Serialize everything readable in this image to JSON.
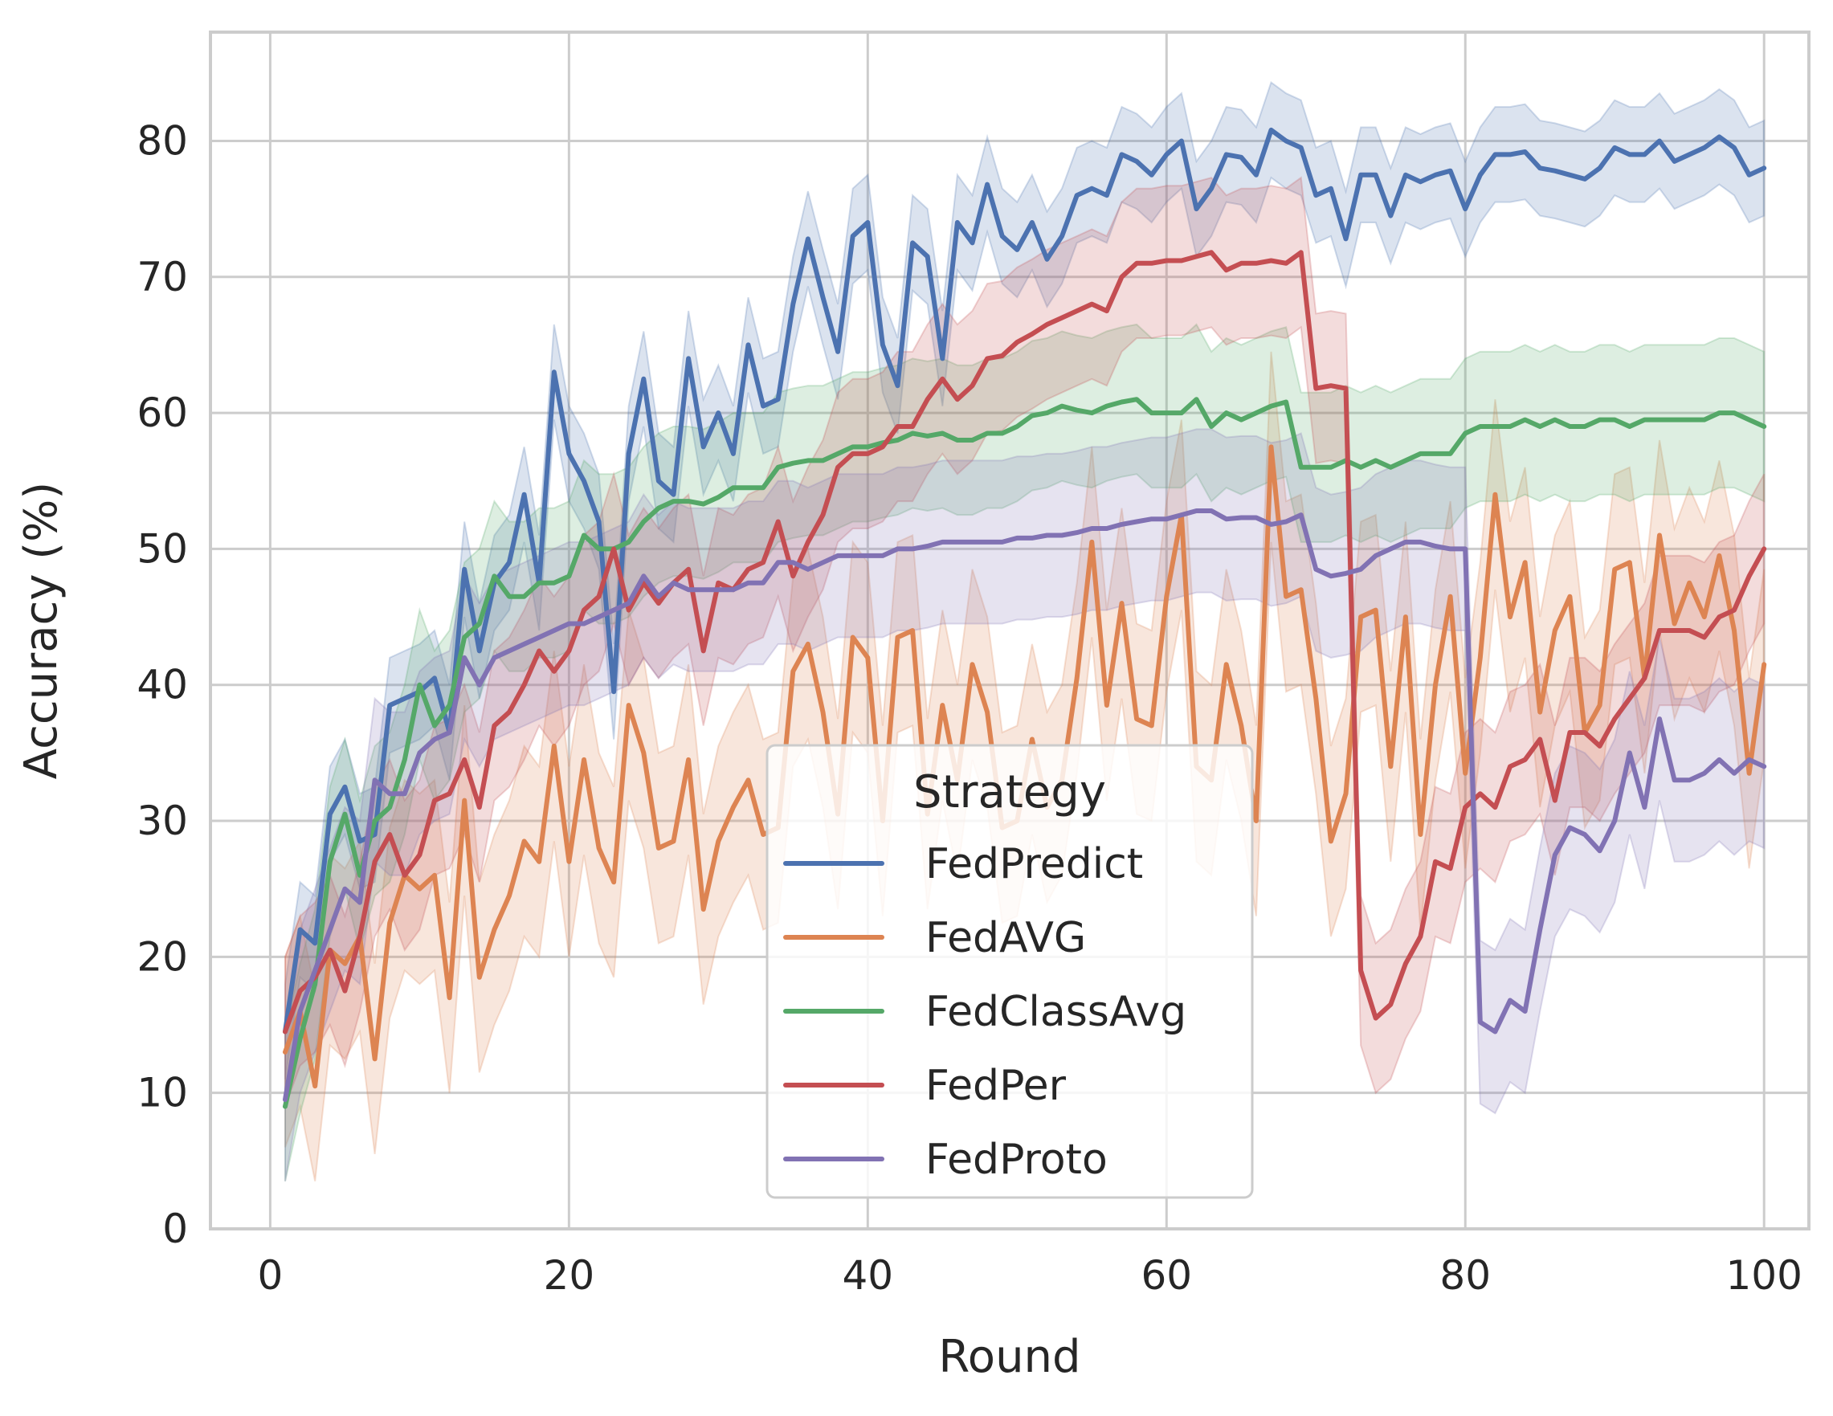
{
  "chart_data": {
    "type": "line",
    "title": "",
    "xlabel": "Round",
    "ylabel": "Accuracy (%)",
    "xlim": [
      -4,
      103
    ],
    "ylim": [
      0,
      88
    ],
    "xticks": [
      0,
      20,
      40,
      60,
      80,
      100
    ],
    "yticks": [
      0,
      10,
      20,
      30,
      40,
      50,
      60,
      70,
      80
    ],
    "grid": true,
    "legend": {
      "title": "Strategy",
      "placement": "lower-center"
    },
    "x": [
      1,
      2,
      3,
      4,
      5,
      6,
      7,
      8,
      9,
      10,
      11,
      12,
      13,
      14,
      15,
      16,
      17,
      18,
      19,
      20,
      21,
      22,
      23,
      24,
      25,
      26,
      27,
      28,
      29,
      30,
      31,
      32,
      33,
      34,
      35,
      36,
      37,
      38,
      39,
      40,
      41,
      42,
      43,
      44,
      45,
      46,
      47,
      48,
      49,
      50,
      51,
      52,
      53,
      54,
      55,
      56,
      57,
      58,
      59,
      60,
      61,
      62,
      63,
      64,
      65,
      66,
      67,
      68,
      69,
      70,
      71,
      72,
      73,
      74,
      75,
      76,
      77,
      78,
      79,
      80,
      81,
      82,
      83,
      84,
      85,
      86,
      87,
      88,
      89,
      90,
      91,
      92,
      93,
      94,
      95,
      96,
      97,
      98,
      99,
      100
    ],
    "series": [
      {
        "name": "FedPredict",
        "color": "#4c72b0",
        "values": [
          14.5,
          22,
          21,
          30.5,
          32.5,
          28.5,
          29,
          38.5,
          39,
          39.5,
          40.5,
          36.5,
          48.5,
          42.5,
          47.5,
          49,
          54,
          47.5,
          63,
          57,
          55,
          52,
          39.5,
          57,
          62.5,
          55,
          54,
          64,
          57.5,
          60,
          57,
          65,
          60.5,
          61,
          68,
          72.8,
          68.5,
          64.5,
          73,
          74,
          65,
          62,
          72.5,
          71.5,
          64,
          74,
          72.5,
          76.8,
          73,
          72,
          74,
          71.3,
          73,
          76,
          76.5,
          76,
          79,
          78.5,
          77.5,
          79,
          80,
          75,
          76.5,
          79,
          78.8,
          77.5,
          80.8,
          80,
          79.5,
          76,
          76.5,
          72.8,
          77.5,
          77.5,
          74.5,
          77.5,
          77,
          77.5,
          77.8,
          75,
          77.5,
          79,
          79,
          79.2,
          78,
          77.8,
          77.5,
          77.2,
          78,
          79.5,
          79,
          79,
          80,
          78.5,
          79,
          79.5,
          80.3,
          79.5,
          77.5,
          78
        ],
        "ci_halfwidth": 3.5
      },
      {
        "name": "FedAVG",
        "color": "#dd8452",
        "values": [
          13,
          16,
          10.5,
          20.5,
          19.5,
          21.5,
          12.5,
          22.5,
          26,
          25,
          26,
          17,
          31.5,
          18.5,
          22,
          24.5,
          28.5,
          27,
          35.5,
          27,
          34.5,
          28,
          25.5,
          38.5,
          35,
          28,
          28.5,
          34.5,
          23.5,
          28.5,
          31,
          33,
          29,
          29.5,
          41,
          43,
          38,
          30.5,
          43.5,
          42,
          30,
          43.5,
          44,
          30.5,
          38.5,
          33,
          41.5,
          38,
          29.5,
          30,
          36,
          31,
          33,
          40.5,
          50.5,
          38.5,
          46,
          37.5,
          37,
          46.5,
          52.5,
          34,
          33,
          41.5,
          37,
          30,
          57.5,
          46.5,
          47,
          39,
          28.5,
          32,
          45,
          45.5,
          34,
          45,
          29,
          40,
          46.5,
          33.5,
          42,
          54,
          45,
          49,
          38,
          44,
          46.5,
          36.5,
          38.5,
          48.5,
          49,
          40.5,
          51,
          44.5,
          47.5,
          45,
          49.5,
          44,
          33.5,
          41.5
        ],
        "ci_halfwidth": 7
      },
      {
        "name": "FedClassAvg",
        "color": "#55a868",
        "values": [
          9,
          14,
          18,
          27,
          30.5,
          26,
          30,
          31,
          34.5,
          40,
          37,
          38.5,
          43.5,
          44.5,
          48,
          46.5,
          46.5,
          47.5,
          47.5,
          48,
          51,
          50,
          50,
          50.5,
          52,
          53,
          53.5,
          53.5,
          53.3,
          53.8,
          54.5,
          54.5,
          54.5,
          56,
          56.3,
          56.5,
          56.5,
          57,
          57.5,
          57.5,
          57.8,
          58,
          58.5,
          58.3,
          58.5,
          58,
          58,
          58.5,
          58.5,
          59,
          59.8,
          60,
          60.5,
          60.2,
          60,
          60.5,
          60.8,
          61,
          60,
          60,
          60,
          61,
          59,
          60,
          59.5,
          60,
          60.5,
          60.8,
          56,
          56,
          56,
          56.5,
          56,
          56.5,
          56,
          56.5,
          57,
          57,
          57,
          58.5,
          59,
          59,
          59,
          59.5,
          59,
          59.5,
          59,
          59,
          59.5,
          59.5,
          59,
          59.5,
          59.5,
          59.5,
          59.5,
          59.5,
          60,
          60,
          59.5,
          59
        ],
        "ci_halfwidth": 5.5
      },
      {
        "name": "FedPer",
        "color": "#c44e52",
        "values": [
          14.5,
          17.5,
          18.5,
          20.5,
          17.5,
          21.5,
          27,
          29,
          26,
          27.5,
          31.5,
          32,
          34.5,
          31,
          37,
          38,
          40,
          42.5,
          41,
          42.5,
          45.5,
          46.5,
          50,
          45.5,
          47.5,
          46,
          47.5,
          48.5,
          42.5,
          47.5,
          47,
          48.5,
          49,
          52,
          48,
          50.5,
          52.5,
          56,
          57,
          57,
          57.5,
          59,
          59,
          61,
          62.5,
          61,
          62,
          64,
          64.2,
          65.2,
          65.8,
          66.5,
          67,
          67.5,
          68,
          67.5,
          70,
          71,
          71,
          71.2,
          71.2,
          71.5,
          71.8,
          70.5,
          71,
          71,
          71.2,
          71,
          71.8,
          61.8,
          62,
          61.8,
          19,
          15.5,
          16.5,
          19.5,
          21.5,
          27,
          26.5,
          31,
          32,
          31,
          34,
          34.5,
          36,
          31.5,
          36.5,
          36.5,
          35.5,
          37.5,
          39,
          40.5,
          44,
          44,
          44,
          43.5,
          45,
          45.5,
          48,
          50
        ],
        "ci_halfwidth": 5.5
      },
      {
        "name": "FedProto",
        "color": "#8172b3",
        "values": [
          9.5,
          16,
          19,
          22,
          25,
          24,
          33,
          32,
          32,
          35,
          36,
          36.5,
          42,
          40,
          42,
          42.5,
          43,
          43.5,
          44,
          44.5,
          44.5,
          45,
          45.5,
          46,
          48,
          46.5,
          47.5,
          47,
          47,
          47,
          47,
          47.5,
          47.5,
          49,
          49,
          48.5,
          49,
          49.5,
          49.5,
          49.5,
          49.5,
          50,
          50,
          50.2,
          50.5,
          50.5,
          50.5,
          50.5,
          50.5,
          50.8,
          50.8,
          51,
          51,
          51.2,
          51.5,
          51.5,
          51.8,
          52,
          52.2,
          52.2,
          52.5,
          52.8,
          52.8,
          52.2,
          52.3,
          52.3,
          51.8,
          52,
          52.5,
          48.5,
          48,
          48.2,
          48.5,
          49.5,
          50,
          50.5,
          50.5,
          50.2,
          50,
          50,
          15.2,
          14.5,
          16.8,
          16,
          22,
          27.5,
          29.5,
          29,
          27.8,
          30,
          35,
          31,
          37.5,
          33,
          33,
          33.5,
          34.5,
          33.5,
          34.5,
          34
        ],
        "ci_halfwidth": 6
      }
    ]
  }
}
